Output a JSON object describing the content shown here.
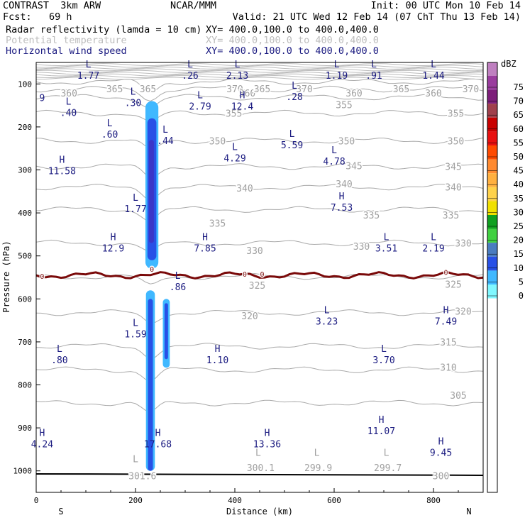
{
  "header": {
    "line1_left": "CONTRAST  3km ARW",
    "line1_mid": "NCAR/MMM",
    "line1_right": "Init: 00 UTC Mon 10 Feb 14",
    "line2_left": "Fcst:   69 h",
    "line2_right": "Valid: 21 UTC Wed 12 Feb 14 (07 ChT Thu 13 Feb 14)",
    "field1": "Radar reflectivity (lamda = 10 cm)",
    "field1_xy": "XY= 400.0,100.0 to 400.0,400.0",
    "field2": "Potential temperature",
    "field2_xy": "XY= 400.0,100.0 to 400.0,400.0",
    "field3": "Horizontal wind speed",
    "field3_xy": "XY= 400.0,100.0 to 400.0,400.0",
    "colors": {
      "field1": "#000000",
      "field2": "#bdbdbd",
      "field3": "#1a1a80"
    }
  },
  "chart_data": {
    "type": "contour cross-section",
    "xlabel": "Distance (km)",
    "ylabel": "Pressure (hPa)",
    "xlim": [
      0,
      900
    ],
    "ylim": [
      1050,
      50
    ],
    "x_ticks": [
      "0",
      "200",
      "400",
      "600",
      "800"
    ],
    "x_tick_values": [
      0,
      200,
      400,
      600,
      800
    ],
    "y_ticks": [
      "100",
      "200",
      "300",
      "400",
      "500",
      "600",
      "700",
      "800",
      "900",
      "1000"
    ],
    "y_tick_values": [
      100,
      200,
      300,
      400,
      500,
      600,
      700,
      800,
      900,
      1000
    ],
    "x_end_labels": {
      "left": "S",
      "right": "N"
    },
    "colorbar": {
      "unit": "dBZ",
      "levels": [
        "75",
        "70",
        "65",
        "60",
        "55",
        "50",
        "45",
        "40",
        "35",
        "30",
        "25",
        "20",
        "15",
        "10",
        "5",
        "0"
      ],
      "colors": [
        "#bf80c0",
        "#9a3c9e",
        "#7d1e7a",
        "#a0404c",
        "#c80000",
        "#e81010",
        "#ff4a00",
        "#ff8a30",
        "#ffb040",
        "#ffd24a",
        "#f0e000",
        "#10a020",
        "#40d040",
        "#4a7cc0",
        "#2850e6",
        "#40b8ff",
        "#80f8ff",
        "#ffffff"
      ]
    },
    "theta_contours": [
      {
        "label": "370",
        "p": 95
      },
      {
        "label": "365",
        "p": 112
      },
      {
        "label": "360",
        "p": 131
      },
      {
        "label": "355",
        "p": 168
      },
      {
        "label": "350",
        "p": 232
      },
      {
        "label": "345",
        "p": 292
      },
      {
        "label": "340",
        "p": 340
      },
      {
        "label": "335",
        "p": 392
      },
      {
        "label": "330",
        "p": 470
      },
      {
        "label": "325",
        "p": 548
      },
      {
        "label": "320",
        "p": 632
      },
      {
        "label": "315",
        "p": 710
      },
      {
        "label": "310",
        "p": 765
      },
      {
        "label": "305",
        "p": 842
      }
    ],
    "theta_labels": [
      {
        "text": "360",
        "x": 66,
        "p": 121
      },
      {
        "text": "365",
        "x": 158,
        "p": 111
      },
      {
        "text": "365",
        "x": 225,
        "p": 111
      },
      {
        "text": "370",
        "x": 400,
        "p": 111
      },
      {
        "text": "360",
        "x": 425,
        "p": 121
      },
      {
        "text": "365",
        "x": 455,
        "p": 111
      },
      {
        "text": "370",
        "x": 540,
        "p": 111
      },
      {
        "text": "360",
        "x": 640,
        "p": 121
      },
      {
        "text": "365",
        "x": 735,
        "p": 111
      },
      {
        "text": "360",
        "x": 800,
        "p": 121
      },
      {
        "text": "370",
        "x": 875,
        "p": 111
      },
      {
        "text": "355",
        "x": 398,
        "p": 168
      },
      {
        "text": "355",
        "x": 620,
        "p": 148
      },
      {
        "text": "355",
        "x": 845,
        "p": 168
      },
      {
        "text": "350",
        "x": 365,
        "p": 232
      },
      {
        "text": "350",
        "x": 625,
        "p": 232
      },
      {
        "text": "350",
        "x": 845,
        "p": 232
      },
      {
        "text": "345",
        "x": 640,
        "p": 290
      },
      {
        "text": "345",
        "x": 840,
        "p": 292
      },
      {
        "text": "340",
        "x": 420,
        "p": 342
      },
      {
        "text": "340",
        "x": 620,
        "p": 332
      },
      {
        "text": "340",
        "x": 840,
        "p": 340
      },
      {
        "text": "335",
        "x": 365,
        "p": 424
      },
      {
        "text": "335",
        "x": 675,
        "p": 405
      },
      {
        "text": "335",
        "x": 835,
        "p": 405
      },
      {
        "text": "330",
        "x": 440,
        "p": 487
      },
      {
        "text": "330",
        "x": 655,
        "p": 477
      },
      {
        "text": "330",
        "x": 860,
        "p": 470
      },
      {
        "text": "325",
        "x": 445,
        "p": 568
      },
      {
        "text": "325",
        "x": 840,
        "p": 566
      },
      {
        "text": "320",
        "x": 430,
        "p": 639
      },
      {
        "text": "320",
        "x": 860,
        "p": 628
      },
      {
        "text": "315",
        "x": 830,
        "p": 700
      },
      {
        "text": "310",
        "x": 830,
        "p": 759
      },
      {
        "text": "305",
        "x": 850,
        "p": 824
      },
      {
        "text": "301.6",
        "x": 214,
        "p": 1011
      },
      {
        "text": "300.1",
        "x": 452,
        "p": 992
      },
      {
        "text": "299.9",
        "x": 568,
        "p": 992
      },
      {
        "text": "299.7",
        "x": 708,
        "p": 992
      },
      {
        "text": "300",
        "x": 815,
        "p": 1011
      }
    ],
    "theta_LH": [
      {
        "text": "L",
        "x": 200,
        "p": 980
      },
      {
        "text": "L",
        "x": 447,
        "p": 965
      },
      {
        "text": "L",
        "x": 565,
        "p": 965
      },
      {
        "text": "L",
        "x": 705,
        "p": 965
      }
    ],
    "freezing_level": {
      "label": "0",
      "p": 545,
      "marks": [
        {
          "x": 12,
          "p": 547
        },
        {
          "x": 233,
          "p": 530
        },
        {
          "x": 420,
          "p": 542
        },
        {
          "x": 455,
          "p": 542
        },
        {
          "x": 825,
          "p": 538
        }
      ]
    },
    "wind_extrema": [
      {
        "type": "L",
        "value": "1.77",
        "x": 105,
        "p": 68
      },
      {
        "type": "L",
        "value": ".26",
        "x": 310,
        "p": 68
      },
      {
        "type": "L",
        "value": "2.13",
        "x": 405,
        "p": 68
      },
      {
        "type": "L",
        "value": "1.19",
        "x": 605,
        "p": 68
      },
      {
        "type": "L",
        "value": ".91",
        "x": 680,
        "p": 68
      },
      {
        "type": "L",
        "value": "1.44",
        "x": 800,
        "p": 68
      },
      {
        "type": "",
        "value": "9",
        "x": 12,
        "p": 120
      },
      {
        "type": "L",
        "value": ".30",
        "x": 195,
        "p": 132
      },
      {
        "type": "L",
        "value": ".28",
        "x": 520,
        "p": 118
      },
      {
        "type": "L",
        "value": ".40",
        "x": 65,
        "p": 155
      },
      {
        "type": "L",
        "value": "2.79",
        "x": 330,
        "p": 140
      },
      {
        "type": "H",
        "value": "12.4",
        "x": 415,
        "p": 140
      },
      {
        "type": "L",
        "value": ".60",
        "x": 148,
        "p": 205
      },
      {
        "type": "L",
        "value": ".44",
        "x": 260,
        "p": 220
      },
      {
        "type": "L",
        "value": "4.29",
        "x": 400,
        "p": 260
      },
      {
        "type": "L",
        "value": "5.59",
        "x": 515,
        "p": 230
      },
      {
        "type": "L",
        "value": "4.78",
        "x": 600,
        "p": 268
      },
      {
        "type": "H",
        "value": "11.58",
        "x": 52,
        "p": 290
      },
      {
        "type": "L",
        "value": "1.77",
        "x": 200,
        "p": 378
      },
      {
        "type": "H",
        "value": "7.53",
        "x": 615,
        "p": 375
      },
      {
        "type": "H",
        "value": "12.9",
        "x": 155,
        "p": 470
      },
      {
        "type": "H",
        "value": "7.85",
        "x": 340,
        "p": 470
      },
      {
        "type": "L",
        "value": "3.51",
        "x": 705,
        "p": 470
      },
      {
        "type": "L",
        "value": "2.19",
        "x": 800,
        "p": 470
      },
      {
        "type": "L",
        "value": ".86",
        "x": 285,
        "p": 560
      },
      {
        "type": "L",
        "value": "3.23",
        "x": 585,
        "p": 640
      },
      {
        "type": "H",
        "value": "7.49",
        "x": 825,
        "p": 640
      },
      {
        "type": "L",
        "value": "1.59",
        "x": 200,
        "p": 670
      },
      {
        "type": "L",
        "value": ".80",
        "x": 47,
        "p": 730
      },
      {
        "type": "H",
        "value": "1.10",
        "x": 365,
        "p": 730
      },
      {
        "type": "L",
        "value": "3.70",
        "x": 700,
        "p": 730
      },
      {
        "type": "H",
        "value": "4.24",
        "x": 12,
        "p": 925
      },
      {
        "type": "H",
        "value": "17.68",
        "x": 245,
        "p": 925
      },
      {
        "type": "H",
        "value": "13.36",
        "x": 465,
        "p": 925
      },
      {
        "type": "H",
        "value": "11.07",
        "x": 695,
        "p": 895
      },
      {
        "type": "H",
        "value": "9.45",
        "x": 815,
        "p": 945
      }
    ],
    "reflectivity_cores": [
      {
        "x": 233,
        "p_top": 140,
        "p_bot": 530,
        "width_km": 26,
        "level": "10"
      },
      {
        "x": 233,
        "p_top": 180,
        "p_bot": 510,
        "width_km": 18,
        "level": "15"
      },
      {
        "x": 232,
        "p_top": 230,
        "p_bot": 470,
        "width_km": 10,
        "level": "20"
      },
      {
        "x": 230,
        "p_top": 580,
        "p_bot": 1000,
        "width_km": 18,
        "level": "10"
      },
      {
        "x": 230,
        "p_top": 600,
        "p_bot": 1000,
        "width_km": 10,
        "level": "15"
      },
      {
        "x": 262,
        "p_top": 600,
        "p_bot": 760,
        "width_km": 14,
        "level": "10"
      },
      {
        "x": 262,
        "p_top": 610,
        "p_bot": 740,
        "width_km": 7,
        "level": "15"
      }
    ],
    "terrain_p": 1007
  }
}
